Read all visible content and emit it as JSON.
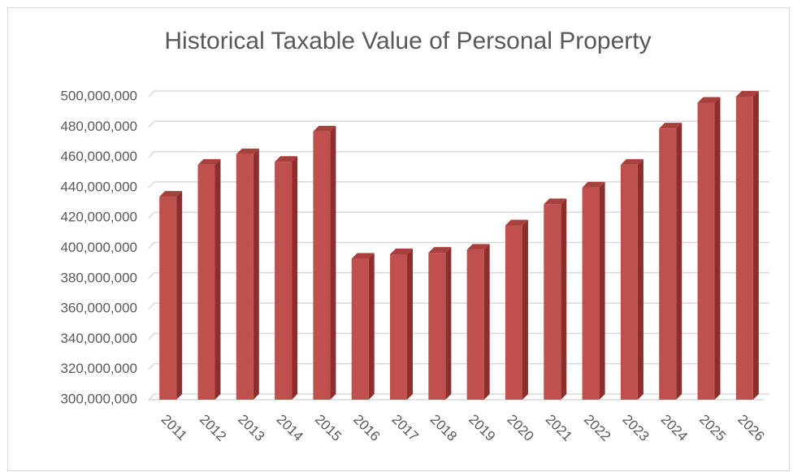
{
  "chart_data": {
    "type": "bar",
    "title": "Historical Taxable Value of Personal Property",
    "categories": [
      "2011",
      "2012",
      "2013",
      "2014",
      "2015",
      "2016",
      "2017",
      "2018",
      "2019",
      "2020",
      "2021",
      "2022",
      "2023",
      "2024",
      "2025",
      "2026"
    ],
    "values": [
      434000000,
      455000000,
      462000000,
      457000000,
      477000000,
      393000000,
      396000000,
      397000000,
      399000000,
      415000000,
      429000000,
      440000000,
      455000000,
      479000000,
      496000000,
      500000000
    ],
    "color": "#c0504d",
    "ylim": [
      300000000,
      500000000
    ],
    "yticks": [
      {
        "value": 300000000,
        "label": "300,000,000"
      },
      {
        "value": 320000000,
        "label": "320,000,000"
      },
      {
        "value": 340000000,
        "label": "340,000,000"
      },
      {
        "value": 360000000,
        "label": "360,000,000"
      },
      {
        "value": 380000000,
        "label": "380,000,000"
      },
      {
        "value": 400000000,
        "label": "400,000,000"
      },
      {
        "value": 420000000,
        "label": "420,000,000"
      },
      {
        "value": 440000000,
        "label": "440,000,000"
      },
      {
        "value": 460000000,
        "label": "460,000,000"
      },
      {
        "value": 480000000,
        "label": "480,000,000"
      },
      {
        "value": 500000000,
        "label": "500,000,000"
      }
    ],
    "grid": true
  }
}
